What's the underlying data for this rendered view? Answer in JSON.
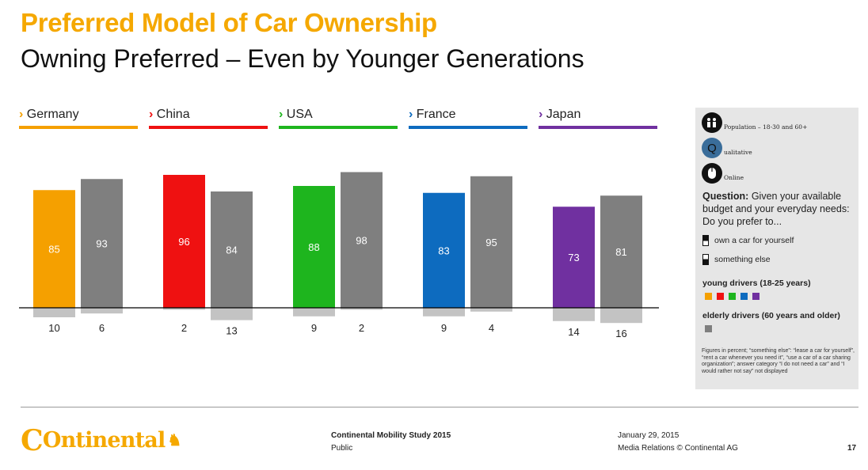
{
  "header": {
    "title": "Preferred Model of Car Ownership",
    "subtitle": "Owning Preferred – Even by Younger Generations"
  },
  "chart_data": {
    "type": "bar",
    "categories": [
      "Germany",
      "China",
      "USA",
      "France",
      "Japan"
    ],
    "category_marker": "›",
    "series": [
      {
        "name": "young drivers (18-25 years)",
        "values": [
          85,
          96,
          88,
          83,
          73
        ],
        "below_values": [
          10,
          2,
          9,
          9,
          14
        ]
      },
      {
        "name": "elderly drivers (60 years and older)",
        "values": [
          93,
          84,
          98,
          95,
          81
        ],
        "below_values": [
          6,
          13,
          2,
          4,
          16
        ]
      }
    ],
    "young_colors": [
      "#f5a000",
      "#ef1111",
      "#1eb51e",
      "#0d6bbf",
      "#7030a0"
    ],
    "elderly_color": "#7f7f7f",
    "below_color": "#c3c3c3",
    "axis_color": "#000000",
    "ylim": [
      -20,
      100
    ],
    "grid": false
  },
  "legend": {
    "meta": [
      {
        "icon": "population-icon",
        "label": "Population – 18-30 and 60+",
        "color": "#111111"
      },
      {
        "icon": "qualitative-icon",
        "glyph": "Q",
        "label": "ualitative",
        "color": "#3a6d9a"
      },
      {
        "icon": "online-mouse-icon",
        "label": "Online",
        "color": "#111111"
      }
    ],
    "question_label": "Question:",
    "question_text": "Given your available budget and your everyday needs: Do you prefer to...",
    "option_own": "own a car for yourself",
    "option_else": "something else",
    "young_title": "young drivers (18-25 years)",
    "elderly_title": "elderly drivers (60 years and older)",
    "footnote": "Figures in percent; “something else”: “lease a car for yourself”, “rent a car whenever you need it”, “use a car of a car sharing organization”; answer category “I do not need a car” and “I would rather not say” not displayed"
  },
  "footer": {
    "logo_text": "Ontinental",
    "logo_initial": "C",
    "study": "Continental Mobility Study 2015",
    "classification": "Public",
    "date": "January 29, 2015",
    "rights": "Media Relations © Continental AG",
    "page": "17"
  }
}
